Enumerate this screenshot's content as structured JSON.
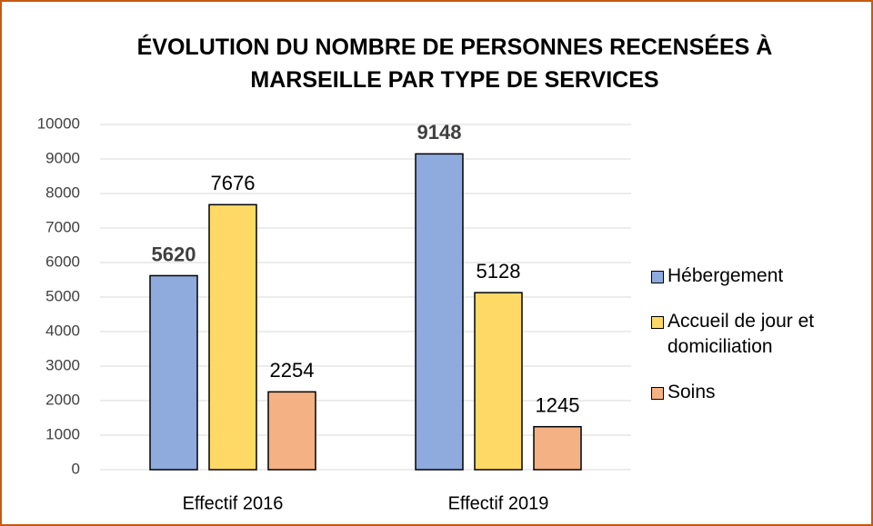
{
  "chart_data": {
    "type": "bar",
    "title": "ÉVOLUTION DU NOMBRE DE PERSONNES RECENSÉES À MARSEILLE PAR TYPE DE SERVICES",
    "categories": [
      "Effectif 2016",
      "Effectif 2019"
    ],
    "series": [
      {
        "name": "Hébergement",
        "color": "#8faadc",
        "values": [
          5620,
          9148
        ],
        "label_bold": true
      },
      {
        "name": "Accueil de jour et domiciliation",
        "color": "#ffd966",
        "values": [
          7676,
          5128
        ],
        "label_bold": false
      },
      {
        "name": "Soins",
        "color": "#f4b183",
        "values": [
          2254,
          1245
        ],
        "label_bold": false
      }
    ],
    "ylim": [
      0,
      10000
    ],
    "yticks": [
      0,
      1000,
      2000,
      3000,
      4000,
      5000,
      6000,
      7000,
      8000,
      9000,
      10000
    ],
    "grid": true,
    "legend": "right"
  }
}
